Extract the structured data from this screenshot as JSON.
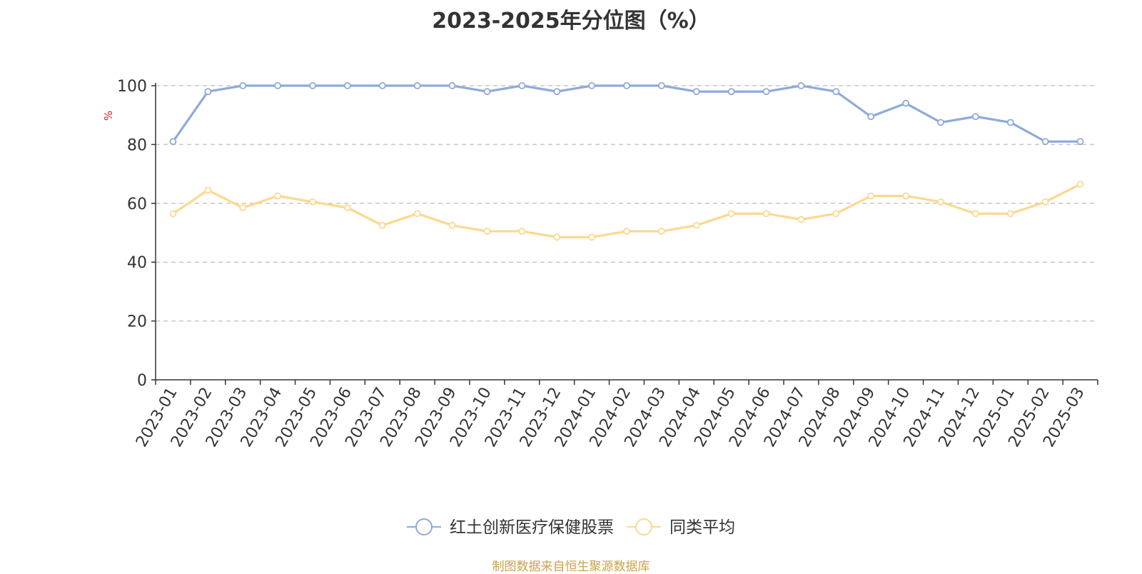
{
  "chart_data": {
    "type": "line",
    "title": "2023-2025年分位图（%）",
    "ylabel": "%",
    "xlabel": "",
    "ylim": [
      0,
      100
    ],
    "yticks": [
      0,
      20,
      40,
      60,
      80,
      100
    ],
    "grid": true,
    "legend_position": "bottom",
    "categories": [
      "2023-01",
      "2023-02",
      "2023-03",
      "2023-04",
      "2023-05",
      "2023-06",
      "2023-07",
      "2023-08",
      "2023-09",
      "2023-10",
      "2023-11",
      "2023-12",
      "2024-01",
      "2024-02",
      "2024-03",
      "2024-04",
      "2024-05",
      "2024-06",
      "2024-07",
      "2024-08",
      "2024-09",
      "2024-10",
      "2024-11",
      "2024-12",
      "2025-01",
      "2025-02",
      "2025-03"
    ],
    "series": [
      {
        "name": "红土创新医疗保健股票",
        "color": "#8eaadb",
        "values": [
          81,
          98,
          100,
          100,
          100,
          100,
          100,
          100,
          100,
          98,
          100,
          98,
          100,
          100,
          100,
          98,
          98,
          98,
          100,
          98,
          89.5,
          94,
          87.5,
          89.5,
          87.5,
          81,
          81
        ]
      },
      {
        "name": "同类平均",
        "color": "#fcd88e",
        "values": [
          56.5,
          64.5,
          58.5,
          62.5,
          60.5,
          58.5,
          52.5,
          56.5,
          52.5,
          50.5,
          50.5,
          48.5,
          48.5,
          50.5,
          50.5,
          52.5,
          56.5,
          56.5,
          54.5,
          56.5,
          62.5,
          62.5,
          60.5,
          56.5,
          56.5,
          60.5,
          66.5
        ]
      }
    ],
    "source": "制图数据来自恒生聚源数据库"
  }
}
